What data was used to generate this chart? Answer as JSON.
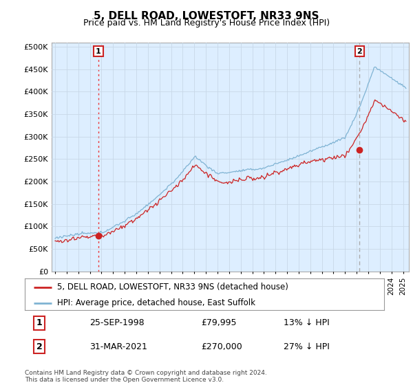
{
  "title": "5, DELL ROAD, LOWESTOFT, NR33 9NS",
  "subtitle": "Price paid vs. HM Land Registry's House Price Index (HPI)",
  "ylabel_ticks": [
    "£0",
    "£50K",
    "£100K",
    "£150K",
    "£200K",
    "£250K",
    "£300K",
    "£350K",
    "£400K",
    "£450K",
    "£500K"
  ],
  "ytick_values": [
    0,
    50000,
    100000,
    150000,
    200000,
    250000,
    300000,
    350000,
    400000,
    450000,
    500000
  ],
  "ylim": [
    0,
    510000
  ],
  "xlim_start": 1994.7,
  "xlim_end": 2025.5,
  "hpi_color": "#7fb3d3",
  "price_color": "#cc2222",
  "plot_bg_color": "#ddeeff",
  "marker1_date": 1998.73,
  "marker1_price": 79995,
  "marker2_date": 2021.25,
  "marker2_price": 270000,
  "vline1_color": "#ee3333",
  "vline2_color": "#aaaaaa",
  "legend_label1": "5, DELL ROAD, LOWESTOFT, NR33 9NS (detached house)",
  "legend_label2": "HPI: Average price, detached house, East Suffolk",
  "annotation1_label": "1",
  "annotation2_label": "2",
  "footer": "Contains HM Land Registry data © Crown copyright and database right 2024.\nThis data is licensed under the Open Government Licence v3.0.",
  "table_row1": [
    "1",
    "25-SEP-1998",
    "£79,995",
    "13% ↓ HPI"
  ],
  "table_row2": [
    "2",
    "31-MAR-2021",
    "£270,000",
    "27% ↓ HPI"
  ],
  "background_color": "#ffffff",
  "grid_color": "#c8d8e8",
  "title_fontsize": 11,
  "subtitle_fontsize": 9
}
